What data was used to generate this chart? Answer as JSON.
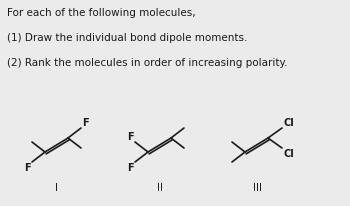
{
  "bg_color": "#ebebeb",
  "text_color": "#1a1a1a",
  "title_line1": "For each of the following molecules,",
  "line2": "(1) Draw the individual bond dipole moments.",
  "line3": "(2) Rank the molecules in order of increasing polarity.",
  "mol1_label": "I",
  "mol2_label": "II",
  "mol3_label": "III",
  "font_size_text": 7.5,
  "font_size_label": 7.5,
  "font_size_atom": 7.0
}
